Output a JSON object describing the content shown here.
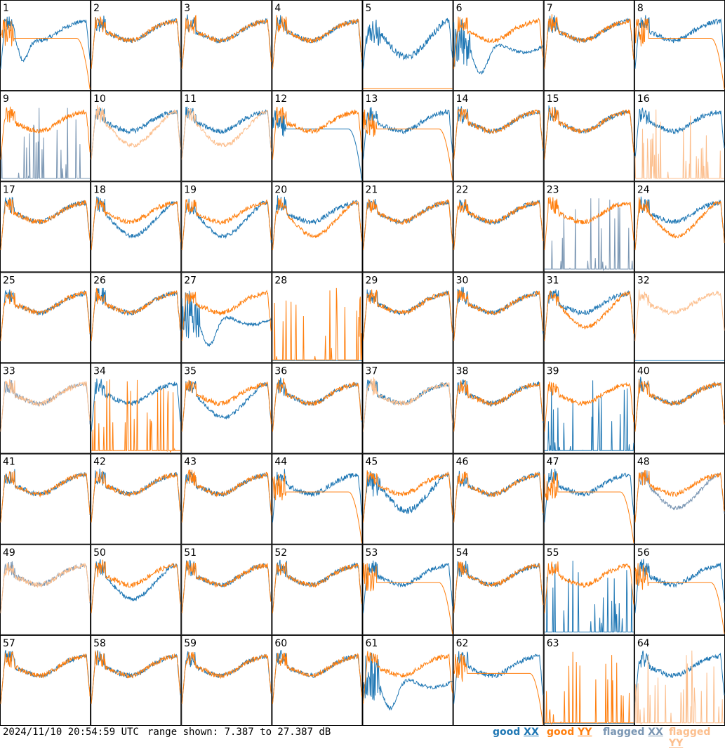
{
  "footer": {
    "timestamp": "2024/11/10 20:54:59 UTC",
    "range_text": "range shown: 7.387 to 27.387 dB"
  },
  "legend": [
    {
      "label": "good ",
      "key": "XX",
      "color": "#1f77b4"
    },
    {
      "label": "good ",
      "key": "YY",
      "color": "#ff7f0e"
    },
    {
      "label": "flagged ",
      "key": "XX",
      "color": "#7a96b3"
    },
    {
      "label": "flagged ",
      "key": "YY",
      "color": "#fcbf8e"
    }
  ],
  "colors": {
    "good_xx": "#1f77b4",
    "good_yy": "#ff7f0e",
    "flagged_xx": "#7a96b3",
    "flagged_yy": "#fcbf8e",
    "grid_border": "#000000"
  },
  "chart_data": {
    "type": "line",
    "layout": "8x8 small multiples",
    "yunit": "dB",
    "ylim": [
      7.387,
      27.387
    ],
    "series_names": [
      "good XX",
      "good YY",
      "flagged XX",
      "flagged YY"
    ],
    "panels": [
      {
        "id": "1",
        "xx": "good",
        "yy": "good",
        "xx_shape": "dip",
        "yy_shape": "rolloff"
      },
      {
        "id": "2",
        "xx": "good",
        "yy": "good",
        "xx_shape": "normal",
        "yy_shape": "normal"
      },
      {
        "id": "3",
        "xx": "good",
        "yy": "good",
        "xx_shape": "normal",
        "yy_shape": "normal"
      },
      {
        "id": "4",
        "xx": "good",
        "yy": "good",
        "xx_shape": "normal",
        "yy_shape": "normal"
      },
      {
        "id": "5",
        "xx": "good",
        "yy": "good",
        "xx_shape": "lowdip",
        "yy_shape": "zero"
      },
      {
        "id": "6",
        "xx": "good",
        "yy": "good",
        "xx_shape": "deepdip",
        "yy_shape": "normal"
      },
      {
        "id": "7",
        "xx": "good",
        "yy": "good",
        "xx_shape": "normal",
        "yy_shape": "normal"
      },
      {
        "id": "8",
        "xx": "good",
        "yy": "good",
        "xx_shape": "normal",
        "yy_shape": "rolloff"
      },
      {
        "id": "9",
        "xx": "flagged",
        "yy": "good",
        "xx_shape": "spikes",
        "yy_shape": "normal"
      },
      {
        "id": "10",
        "xx": "good",
        "yy": "flagged",
        "xx_shape": "normal",
        "yy_shape": "sag"
      },
      {
        "id": "11",
        "xx": "good",
        "yy": "flagged",
        "xx_shape": "normal",
        "yy_shape": "sag"
      },
      {
        "id": "12",
        "xx": "good",
        "yy": "good",
        "xx_shape": "rolloff",
        "yy_shape": "normal"
      },
      {
        "id": "13",
        "xx": "good",
        "yy": "good",
        "xx_shape": "normal",
        "yy_shape": "rolloff"
      },
      {
        "id": "14",
        "xx": "good",
        "yy": "good",
        "xx_shape": "normal",
        "yy_shape": "normal"
      },
      {
        "id": "15",
        "xx": "good",
        "yy": "good",
        "xx_shape": "normal",
        "yy_shape": "normal"
      },
      {
        "id": "16",
        "xx": "good",
        "yy": "flagged",
        "xx_shape": "normal",
        "yy_shape": "spikes"
      },
      {
        "id": "17",
        "xx": "good",
        "yy": "good",
        "xx_shape": "normal",
        "yy_shape": "normal"
      },
      {
        "id": "18",
        "xx": "good",
        "yy": "good",
        "xx_shape": "sag",
        "yy_shape": "normal"
      },
      {
        "id": "19",
        "xx": "good",
        "yy": "good",
        "xx_shape": "sag",
        "yy_shape": "normal"
      },
      {
        "id": "20",
        "xx": "good",
        "yy": "good",
        "xx_shape": "normal",
        "yy_shape": "sag"
      },
      {
        "id": "21",
        "xx": "good",
        "yy": "good",
        "xx_shape": "normal",
        "yy_shape": "normal"
      },
      {
        "id": "22",
        "xx": "good",
        "yy": "good",
        "xx_shape": "normal",
        "yy_shape": "normal"
      },
      {
        "id": "23",
        "xx": "flagged",
        "yy": "good",
        "xx_shape": "spikes",
        "yy_shape": "normal"
      },
      {
        "id": "24",
        "xx": "good",
        "yy": "good",
        "xx_shape": "normal",
        "yy_shape": "sag"
      },
      {
        "id": "25",
        "xx": "good",
        "yy": "good",
        "xx_shape": "normal",
        "yy_shape": "normal"
      },
      {
        "id": "26",
        "xx": "good",
        "yy": "good",
        "xx_shape": "normal",
        "yy_shape": "normal"
      },
      {
        "id": "27",
        "xx": "good",
        "yy": "good",
        "xx_shape": "deepdip",
        "yy_shape": "normal"
      },
      {
        "id": "28",
        "xx": "good",
        "yy": "good",
        "xx_shape": "zero",
        "yy_shape": "spikes"
      },
      {
        "id": "29",
        "xx": "good",
        "yy": "good",
        "xx_shape": "normal",
        "yy_shape": "normal"
      },
      {
        "id": "30",
        "xx": "good",
        "yy": "good",
        "xx_shape": "normal",
        "yy_shape": "normal"
      },
      {
        "id": "31",
        "xx": "good",
        "yy": "good",
        "xx_shape": "normal",
        "yy_shape": "sag"
      },
      {
        "id": "32",
        "xx": "good",
        "yy": "flagged",
        "xx_shape": "zero",
        "yy_shape": "normal"
      },
      {
        "id": "33",
        "xx": "flagged",
        "yy": "flagged",
        "xx_shape": "normal",
        "yy_shape": "normal"
      },
      {
        "id": "34",
        "xx": "good",
        "yy": "good",
        "xx_shape": "normal",
        "yy_shape": "spikes"
      },
      {
        "id": "35",
        "xx": "good",
        "yy": "good",
        "xx_shape": "sag",
        "yy_shape": "normal"
      },
      {
        "id": "36",
        "xx": "good",
        "yy": "good",
        "xx_shape": "normal",
        "yy_shape": "normal"
      },
      {
        "id": "37",
        "xx": "good",
        "yy": "flagged",
        "xx_shape": "normal",
        "yy_shape": "normal"
      },
      {
        "id": "38",
        "xx": "good",
        "yy": "good",
        "xx_shape": "normal",
        "yy_shape": "normal"
      },
      {
        "id": "39",
        "xx": "good",
        "yy": "good",
        "xx_shape": "spikes",
        "yy_shape": "normal"
      },
      {
        "id": "40",
        "xx": "good",
        "yy": "good",
        "xx_shape": "normal",
        "yy_shape": "normal"
      },
      {
        "id": "41",
        "xx": "good",
        "yy": "good",
        "xx_shape": "normal",
        "yy_shape": "normal"
      },
      {
        "id": "42",
        "xx": "good",
        "yy": "good",
        "xx_shape": "normal",
        "yy_shape": "normal"
      },
      {
        "id": "43",
        "xx": "good",
        "yy": "good",
        "xx_shape": "normal",
        "yy_shape": "normal"
      },
      {
        "id": "44",
        "xx": "good",
        "yy": "good",
        "xx_shape": "normal",
        "yy_shape": "rolloff"
      },
      {
        "id": "45",
        "xx": "good",
        "yy": "good",
        "xx_shape": "lowdip",
        "yy_shape": "normal"
      },
      {
        "id": "46",
        "xx": "good",
        "yy": "good",
        "xx_shape": "normal",
        "yy_shape": "normal"
      },
      {
        "id": "47",
        "xx": "good",
        "yy": "good",
        "xx_shape": "normal",
        "yy_shape": "rolloff"
      },
      {
        "id": "48",
        "xx": "flagged",
        "yy": "good",
        "xx_shape": "sag",
        "yy_shape": "normal"
      },
      {
        "id": "49",
        "xx": "flagged",
        "yy": "flagged",
        "xx_shape": "normal",
        "yy_shape": "normal"
      },
      {
        "id": "50",
        "xx": "good",
        "yy": "good",
        "xx_shape": "sag",
        "yy_shape": "normal"
      },
      {
        "id": "51",
        "xx": "good",
        "yy": "good",
        "xx_shape": "normal",
        "yy_shape": "normal"
      },
      {
        "id": "52",
        "xx": "good",
        "yy": "good",
        "xx_shape": "normal",
        "yy_shape": "normal"
      },
      {
        "id": "53",
        "xx": "good",
        "yy": "good",
        "xx_shape": "normal",
        "yy_shape": "rolloff"
      },
      {
        "id": "54",
        "xx": "good",
        "yy": "good",
        "xx_shape": "normal",
        "yy_shape": "normal"
      },
      {
        "id": "55",
        "xx": "good",
        "yy": "good",
        "xx_shape": "spikes",
        "yy_shape": "normal"
      },
      {
        "id": "56",
        "xx": "good",
        "yy": "good",
        "xx_shape": "normal",
        "yy_shape": "rolloff"
      },
      {
        "id": "57",
        "xx": "good",
        "yy": "good",
        "xx_shape": "normal",
        "yy_shape": "normal"
      },
      {
        "id": "58",
        "xx": "good",
        "yy": "good",
        "xx_shape": "normal",
        "yy_shape": "normal"
      },
      {
        "id": "59",
        "xx": "good",
        "yy": "good",
        "xx_shape": "normal",
        "yy_shape": "normal"
      },
      {
        "id": "60",
        "xx": "good",
        "yy": "good",
        "xx_shape": "normal",
        "yy_shape": "normal"
      },
      {
        "id": "61",
        "xx": "good",
        "yy": "good",
        "xx_shape": "deepdip",
        "yy_shape": "normal"
      },
      {
        "id": "62",
        "xx": "good",
        "yy": "good",
        "xx_shape": "normal",
        "yy_shape": "rolloff"
      },
      {
        "id": "63",
        "xx": "good",
        "yy": "good",
        "xx_shape": "zero",
        "yy_shape": "spikes"
      },
      {
        "id": "64",
        "xx": "good",
        "yy": "flagged",
        "xx_shape": "normal",
        "yy_shape": "spikes"
      }
    ]
  }
}
